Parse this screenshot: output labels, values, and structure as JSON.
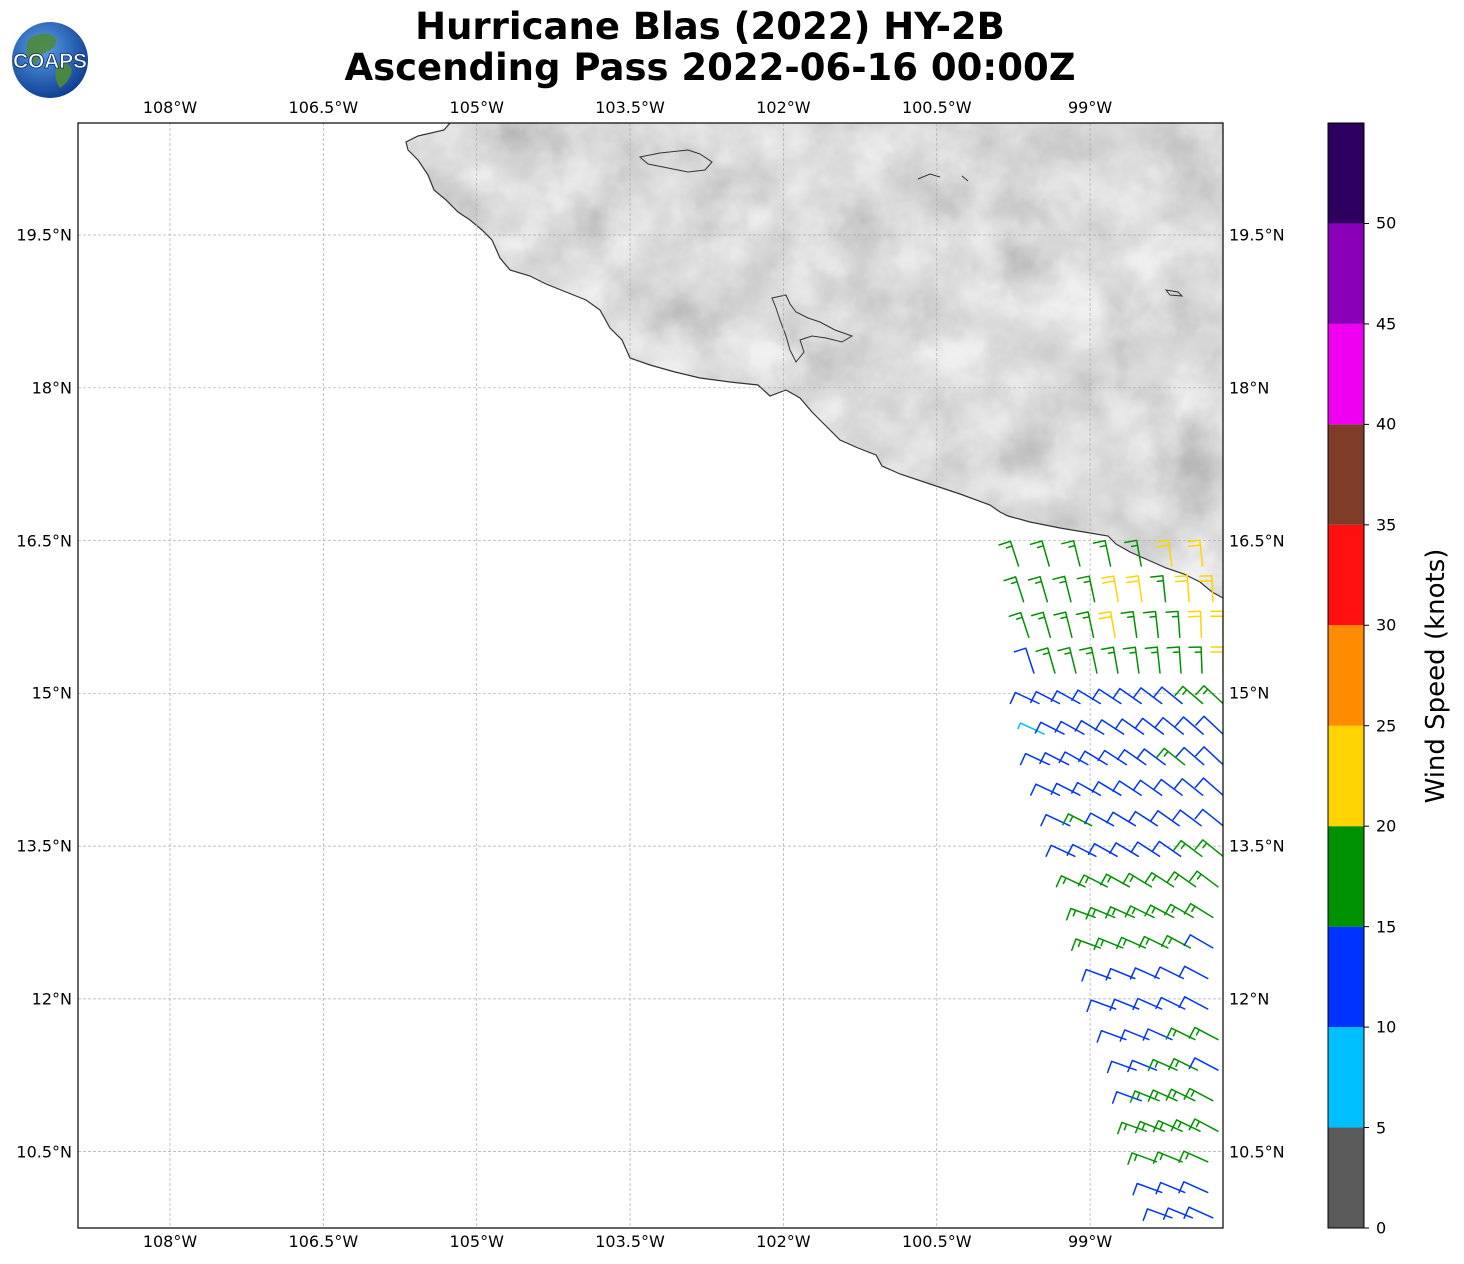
{
  "title": {
    "line1": "Hurricane Blas (2022) HY-2B",
    "line2": "Ascending Pass 2022-06-16 00:00Z"
  },
  "logo": {
    "text": "COAPS"
  },
  "axes": {
    "lon_labels": [
      "108°W",
      "106.5°W",
      "105°W",
      "103.5°W",
      "102°W",
      "100.5°W",
      "99°W"
    ],
    "lon_values": [
      -108,
      -106.5,
      -105,
      -103.5,
      -102,
      -100.5,
      -99
    ],
    "lat_labels": [
      "19.5°N",
      "18°N",
      "16.5°N",
      "15°N",
      "13.5°N",
      "12°N",
      "10.5°N"
    ],
    "lat_values": [
      19.5,
      18,
      16.5,
      15,
      13.5,
      12,
      10.5
    ],
    "lon_range": [
      -108.9,
      -97.7
    ],
    "lat_range": [
      9.75,
      20.6
    ]
  },
  "colorbar": {
    "label": "Wind Speed (knots)",
    "ticks": [
      "0",
      "5",
      "10",
      "15",
      "20",
      "25",
      "30",
      "35",
      "40",
      "45",
      "50"
    ],
    "bins": [
      {
        "from": 0,
        "to": 5,
        "color": "#5a5a5a"
      },
      {
        "from": 5,
        "to": 10,
        "color": "#00bfff"
      },
      {
        "from": 10,
        "to": 15,
        "color": "#0033ff"
      },
      {
        "from": 15,
        "to": 20,
        "color": "#009100"
      },
      {
        "from": 20,
        "to": 25,
        "color": "#ffd400"
      },
      {
        "from": 25,
        "to": 30,
        "color": "#ff8c00"
      },
      {
        "from": 30,
        "to": 35,
        "color": "#ff0f0f"
      },
      {
        "from": 35,
        "to": 40,
        "color": "#7f3c28"
      },
      {
        "from": 40,
        "to": 45,
        "color": "#f000f0"
      },
      {
        "from": 45,
        "to": 50,
        "color": "#8a00b8"
      },
      {
        "from": 50,
        "to": 55,
        "color": "#2d0060"
      }
    ]
  },
  "wind_swath": {
    "rows": [
      {
        "lat": 16.25,
        "lon_start": -99.7,
        "lon_end": -97.9,
        "speeds": [
          17,
          17,
          18,
          17,
          19,
          21,
          22
        ]
      },
      {
        "lat": 15.9,
        "lon_start": -99.65,
        "lon_end": -97.8,
        "speeds": [
          16,
          17,
          18,
          18,
          21,
          22,
          18,
          21,
          22
        ]
      },
      {
        "lat": 15.55,
        "lon_start": -99.6,
        "lon_end": -97.7,
        "speeds": [
          17,
          17,
          18,
          19,
          21,
          18,
          17,
          18,
          22,
          22
        ]
      },
      {
        "lat": 15.2,
        "lon_start": -99.55,
        "lon_end": -97.7,
        "speeds": [
          13,
          17,
          17,
          18,
          17,
          18,
          17,
          18,
          16,
          21
        ]
      },
      {
        "lat": 14.9,
        "lon_start": -99.5,
        "lon_end": -97.7,
        "speeds": [
          12,
          12,
          13,
          14,
          13,
          13,
          14,
          12,
          17,
          16
        ]
      },
      {
        "lat": 14.6,
        "lon_start": -99.45,
        "lon_end": -97.7,
        "speeds": [
          8,
          12,
          13,
          12,
          13,
          13,
          12,
          13,
          14,
          12
        ]
      },
      {
        "lat": 14.3,
        "lon_start": -99.4,
        "lon_end": -97.7,
        "speeds": [
          12,
          12,
          13,
          12,
          13,
          12,
          13,
          17,
          13,
          12
        ]
      },
      {
        "lat": 14.0,
        "lon_start": -99.3,
        "lon_end": -97.7,
        "speeds": [
          13,
          12,
          13,
          14,
          12,
          13,
          12,
          13,
          12
        ]
      },
      {
        "lat": 13.7,
        "lon_start": -99.2,
        "lon_end": -97.7,
        "speeds": [
          12,
          17,
          13,
          12,
          13,
          12,
          13,
          12
        ]
      },
      {
        "lat": 13.4,
        "lon_start": -99.15,
        "lon_end": -97.7,
        "speeds": [
          13,
          13,
          12,
          14,
          13,
          12,
          17,
          17
        ]
      },
      {
        "lat": 13.1,
        "lon_start": -99.05,
        "lon_end": -97.75,
        "speeds": [
          17,
          16,
          17,
          18,
          17,
          17,
          18
        ]
      },
      {
        "lat": 12.8,
        "lon_start": -98.95,
        "lon_end": -97.8,
        "speeds": [
          16,
          17,
          18,
          17,
          17,
          16,
          17
        ]
      },
      {
        "lat": 12.5,
        "lon_start": -98.9,
        "lon_end": -97.8,
        "speeds": [
          17,
          16,
          17,
          18,
          16,
          12
        ]
      },
      {
        "lat": 12.2,
        "lon_start": -98.8,
        "lon_end": -97.85,
        "speeds": [
          12,
          13,
          12,
          12,
          13
        ]
      },
      {
        "lat": 11.9,
        "lon_start": -98.75,
        "lon_end": -97.85,
        "speeds": [
          12,
          13,
          12,
          13,
          12
        ]
      },
      {
        "lat": 11.6,
        "lon_start": -98.65,
        "lon_end": -97.75,
        "speeds": [
          12,
          13,
          12,
          17,
          17
        ]
      },
      {
        "lat": 11.3,
        "lon_start": -98.55,
        "lon_end": -97.75,
        "speeds": [
          12,
          13,
          16,
          17,
          12
        ]
      },
      {
        "lat": 11.0,
        "lon_start": -98.5,
        "lon_end": -97.8,
        "speeds": [
          12,
          16,
          17,
          16,
          17
        ]
      },
      {
        "lat": 10.7,
        "lon_start": -98.45,
        "lon_end": -97.75,
        "speeds": [
          16,
          17,
          16,
          17,
          17
        ]
      },
      {
        "lat": 10.4,
        "lon_start": -98.35,
        "lon_end": -97.85,
        "speeds": [
          16,
          17,
          16
        ]
      },
      {
        "lat": 10.1,
        "lon_start": -98.3,
        "lon_end": -97.85,
        "speeds": [
          12,
          13,
          12
        ]
      },
      {
        "lat": 9.85,
        "lon_start": -98.2,
        "lon_end": -97.8,
        "speeds": [
          13,
          12,
          13
        ]
      }
    ]
  }
}
